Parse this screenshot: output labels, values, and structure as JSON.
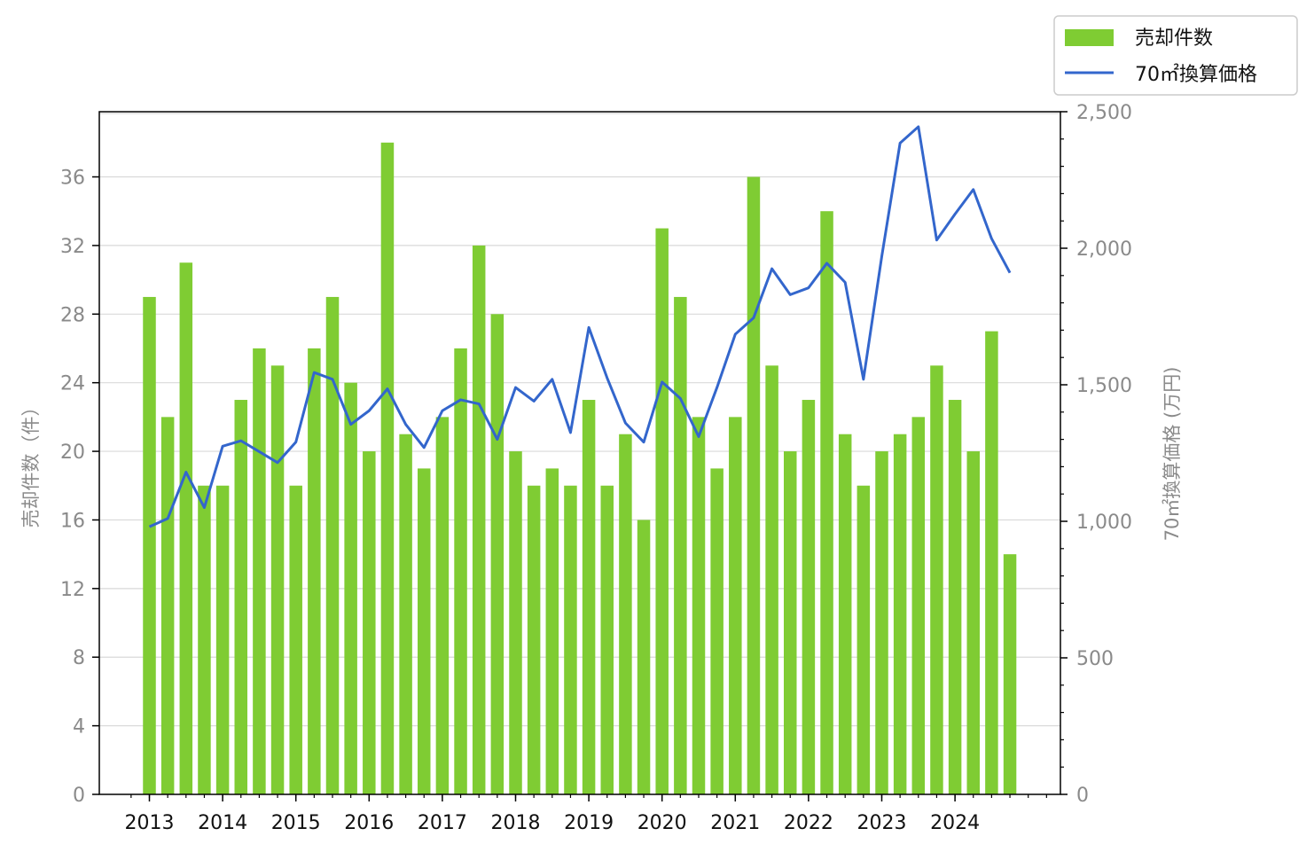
{
  "chart_data": {
    "type": "bar",
    "x_tick_labels": [
      "2013",
      "2014",
      "2015",
      "2016",
      "2017",
      "2018",
      "2019",
      "2020",
      "2021",
      "2022",
      "2023",
      "2024"
    ],
    "ylabel_left": "売却件数（件）",
    "ylabel_right": "70㎡換算価格 (万円)",
    "ylim_left": [
      0,
      39.8
    ],
    "ylim_right": [
      0,
      2500
    ],
    "yticks_left": [
      0,
      4,
      8,
      12,
      16,
      20,
      24,
      28,
      32,
      36
    ],
    "yticks_right": [
      0,
      500,
      1000,
      1500,
      2000,
      2500
    ],
    "yticks_right_labels": [
      "0",
      "500",
      "1,000",
      "1,500",
      "2,000",
      "2,500"
    ],
    "grid": "horizontal",
    "legend_position": "top-right",
    "series": [
      {
        "name": "売却件数",
        "type": "bar",
        "axis": "left",
        "color": "#7fcc33",
        "values": [
          29,
          22,
          31,
          18,
          18,
          23,
          26,
          25,
          18,
          26,
          29,
          24,
          20,
          38,
          21,
          19,
          22,
          26,
          32,
          28,
          20,
          18,
          19,
          18,
          23,
          18,
          21,
          16,
          33,
          29,
          22,
          19,
          22,
          36,
          25,
          20,
          23,
          34,
          21,
          18,
          20,
          21,
          22,
          25,
          23,
          20,
          27,
          14
        ]
      },
      {
        "name": "70㎡換算価格",
        "type": "line",
        "axis": "right",
        "color": "#3366cc",
        "values": [
          980,
          1010,
          1180,
          1050,
          1275,
          1295,
          1255,
          1215,
          1290,
          1545,
          1520,
          1355,
          1405,
          1485,
          1355,
          1270,
          1405,
          1445,
          1430,
          1300,
          1490,
          1440,
          1520,
          1325,
          1710,
          1525,
          1360,
          1290,
          1510,
          1450,
          1310,
          1490,
          1685,
          1745,
          1925,
          1830,
          1855,
          1945,
          1875,
          1520,
          1970,
          2385,
          2445,
          2030,
          2125,
          2215,
          2035,
          1910
        ]
      }
    ]
  }
}
